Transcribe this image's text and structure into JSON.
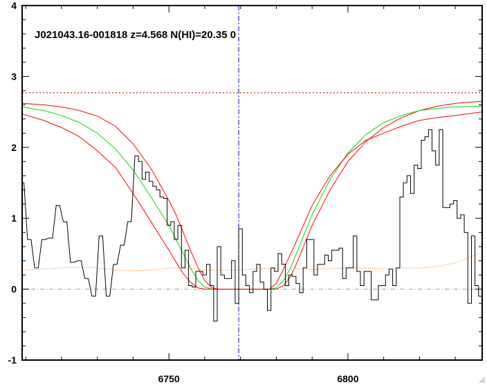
{
  "chart_data": {
    "type": "line",
    "title": "J021043.16-001818 z=4.568 N(HI)=20.35 0",
    "xlabel": "",
    "ylabel": "",
    "xlim": [
      6709,
      6837.5
    ],
    "ylim": [
      -1,
      4
    ],
    "x_ticks": [
      6750,
      6800
    ],
    "y_ticks": [
      -1,
      0,
      1,
      2,
      3,
      4
    ],
    "grid": false,
    "line_center_x": 6769.5,
    "continuum_level": 2.77,
    "zero_level": 0,
    "spectrum": {
      "step": true,
      "color": "#000000",
      "x": [
        6709.0,
        6711.0,
        6713.0,
        6715.0,
        6717.0,
        6719.0,
        6721.0,
        6723.0,
        6725.0,
        6727.0,
        6729.0,
        6731.0,
        6733.0,
        6735.0,
        6737.0,
        6739.0,
        6741.0,
        6742.0,
        6743.0,
        6744.0,
        6745.0,
        6746.0,
        6747.0,
        6748.0,
        6749.0,
        6750.0,
        6751.0,
        6752.0,
        6753.0,
        6754.0,
        6755.0,
        6756.0,
        6757.0,
        6758.0,
        6759.0,
        6760.0,
        6761.0,
        6762.0,
        6763.0,
        6764.0,
        6765.0,
        6766.0,
        6767.0,
        6768.0,
        6769.0,
        6770.0,
        6771.0,
        6772.0,
        6773.0,
        6774.0,
        6775.0,
        6776.0,
        6777.0,
        6778.0,
        6779.0,
        6780.0,
        6781.0,
        6782.0,
        6783.0,
        6784.0,
        6785.0,
        6786.0,
        6787.0,
        6788.0,
        6789.0,
        6790.0,
        6791.0,
        6792.0,
        6793.0,
        6794.0,
        6795.0,
        6796.0,
        6797.0,
        6798.0,
        6799.0,
        6800.0,
        6801.0,
        6802.0,
        6803.0,
        6804.0,
        6805.0,
        6806.0,
        6807.0,
        6808.0,
        6809.0,
        6810.0,
        6811.0,
        6812.0,
        6813.0,
        6814.0,
        6815.0,
        6816.0,
        6817.0,
        6818.0,
        6819.0,
        6820.0,
        6821.0,
        6822.0,
        6823.0,
        6824.0,
        6825.0,
        6826.0,
        6827.0,
        6828.0,
        6829.0,
        6830.0,
        6831.0,
        6832.0,
        6833.0,
        6834.0,
        6835.0,
        6836.0,
        6837.0
      ],
      "y": [
        1.5,
        0.7,
        0.3,
        0.7,
        0.72,
        1.18,
        0.95,
        0.38,
        0.4,
        0.15,
        -0.1,
        0.75,
        -0.1,
        0.35,
        0.62,
        0.95,
        1.88,
        1.8,
        1.55,
        1.65,
        1.52,
        1.45,
        1.4,
        1.3,
        1.28,
        0.9,
        0.95,
        0.7,
        0.9,
        0.3,
        0.55,
        0.05,
        0.03,
        0.25,
        0.25,
        0.2,
        0.35,
        0.05,
        -0.45,
        0.6,
        0.2,
        0.15,
        0.15,
        0.4,
        -0.2,
        0.85,
        0.2,
        0.05,
        -0.05,
        0.25,
        0.35,
        0.1,
        0.0,
        -0.3,
        0.3,
        0.25,
        0.5,
        0.35,
        0.05,
        0.2,
        0.18,
        0.08,
        -0.05,
        0.3,
        0.7,
        0.7,
        0.2,
        0.35,
        0.35,
        0.48,
        0.4,
        0.55,
        0.55,
        0.58,
        0.15,
        0.3,
        0.3,
        0.75,
        0.25,
        0.05,
        0.25,
        0.25,
        -0.15,
        -0.15,
        0.05,
        0.05,
        0.2,
        0.28,
        0.05,
        0.3,
        1.3,
        1.5,
        1.6,
        1.35,
        1.75,
        1.7,
        2.1,
        2.15,
        2.25,
        1.95,
        1.75,
        2.25,
        1.15,
        1.15,
        1.2,
        1.25,
        1.0,
        1.05,
        0.8,
        -0.2,
        0.75,
        0.05,
        -0.1
      ]
    },
    "series": [
      {
        "color": "#ff0000",
        "x": [
          6709,
          6715,
          6720,
          6725,
          6730,
          6735,
          6740,
          6745,
          6750,
          6752,
          6754,
          6756,
          6758,
          6760,
          6762,
          6764,
          6766,
          6768,
          6770,
          6772,
          6774,
          6776,
          6778,
          6780,
          6782,
          6784,
          6786,
          6788,
          6790,
          6795,
          6800,
          6805,
          6810,
          6815,
          6820,
          6825,
          6830,
          6837.5
        ],
        "y": [
          2.62,
          2.6,
          2.57,
          2.52,
          2.44,
          2.3,
          2.05,
          1.7,
          1.25,
          1.05,
          0.8,
          0.55,
          0.32,
          0.12,
          0.02,
          0.0,
          0.0,
          0.0,
          0.0,
          0.0,
          0.0,
          0.0,
          0.0,
          0.0,
          0.05,
          0.18,
          0.4,
          0.65,
          0.9,
          1.4,
          1.8,
          2.08,
          2.28,
          2.42,
          2.52,
          2.58,
          2.62,
          2.65
        ]
      },
      {
        "color": "#00dd00",
        "x": [
          6709,
          6715,
          6720,
          6725,
          6730,
          6735,
          6740,
          6745,
          6750,
          6752,
          6754,
          6756,
          6758,
          6760,
          6762,
          6764,
          6766,
          6768,
          6770,
          6772,
          6774,
          6776,
          6778,
          6780,
          6782,
          6784,
          6786,
          6788,
          6790,
          6795,
          6800,
          6805,
          6810,
          6815,
          6820,
          6825,
          6830,
          6837.5
        ],
        "y": [
          2.57,
          2.52,
          2.45,
          2.35,
          2.2,
          1.98,
          1.68,
          1.3,
          0.9,
          0.7,
          0.5,
          0.3,
          0.13,
          0.03,
          0.0,
          0.0,
          0.0,
          0.0,
          0.0,
          0.0,
          0.0,
          0.0,
          0.0,
          0.02,
          0.12,
          0.3,
          0.55,
          0.8,
          1.05,
          1.55,
          1.92,
          2.18,
          2.35,
          2.45,
          2.52,
          2.55,
          2.57,
          2.58
        ]
      },
      {
        "color": "#ff0000",
        "x": [
          6709,
          6715,
          6720,
          6725,
          6730,
          6735,
          6740,
          6745,
          6750,
          6752,
          6754,
          6756,
          6758,
          6760,
          6762,
          6764,
          6766,
          6768,
          6770,
          6772,
          6774,
          6776,
          6778,
          6780,
          6782,
          6784,
          6786,
          6788,
          6790,
          6795,
          6800,
          6805,
          6810,
          6815,
          6820,
          6825,
          6830,
          6837.5
        ],
        "y": [
          2.47,
          2.38,
          2.28,
          2.15,
          1.95,
          1.72,
          1.35,
          0.95,
          0.55,
          0.38,
          0.22,
          0.1,
          0.02,
          0.0,
          0.0,
          0.0,
          0.0,
          0.0,
          0.0,
          0.0,
          0.0,
          0.0,
          0.0,
          0.08,
          0.28,
          0.5,
          0.72,
          0.95,
          1.18,
          1.6,
          1.9,
          2.1,
          2.2,
          2.3,
          2.38,
          2.42,
          2.45,
          2.5
        ]
      },
      {
        "color": "#ff8000",
        "dotted": true,
        "x": [
          6709,
          6715,
          6720,
          6725,
          6730,
          6735,
          6740,
          6745,
          6750,
          6755,
          6760,
          6765,
          6770,
          6775,
          6780,
          6785,
          6790,
          6795,
          6800,
          6805,
          6810,
          6815,
          6820,
          6825,
          6830,
          6834,
          6837.5
        ],
        "y": [
          0.27,
          0.28,
          0.3,
          0.31,
          0.3,
          0.27,
          0.26,
          0.27,
          0.3,
          0.3,
          0.27,
          0.27,
          0.27,
          0.29,
          0.29,
          0.28,
          0.28,
          0.29,
          0.3,
          0.3,
          0.29,
          0.3,
          0.3,
          0.32,
          0.37,
          0.45,
          0.52
        ]
      }
    ],
    "colors": {
      "axes": "#000000",
      "center_line": "#0000cc",
      "continuum_line": "#cc0000",
      "zero_line": "#999999"
    }
  }
}
